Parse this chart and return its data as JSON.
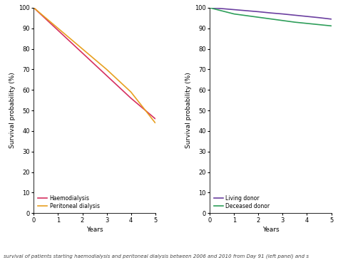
{
  "left_panel": {
    "xlabel": "Years",
    "ylabel": "Survival probability (%)",
    "xlim": [
      0,
      5
    ],
    "ylim": [
      0,
      100
    ],
    "xticks": [
      0,
      1,
      2,
      3,
      4,
      5
    ],
    "yticks": [
      0,
      10,
      20,
      30,
      40,
      50,
      60,
      70,
      80,
      90,
      100
    ],
    "series": [
      {
        "label": "Haemodialysis",
        "color": "#d63060",
        "x": [
          0,
          0.5,
          1,
          1.5,
          2,
          2.5,
          3,
          3.5,
          4,
          4.5,
          5
        ],
        "y": [
          100,
          94.5,
          89,
          83.5,
          78,
          72.5,
          67,
          61.5,
          56,
          51,
          46
        ]
      },
      {
        "label": "Peritoneal dialysis",
        "color": "#e8a020",
        "x": [
          0,
          0.5,
          1,
          1.5,
          2,
          2.5,
          3,
          3.5,
          4,
          4.5,
          5
        ],
        "y": [
          100,
          95,
          90,
          85,
          80,
          75,
          70,
          64.5,
          59,
          51.5,
          44
        ]
      }
    ]
  },
  "right_panel": {
    "xlabel": "Years",
    "ylabel": "Survival probability (%)",
    "xlim": [
      0,
      5
    ],
    "ylim": [
      0,
      100
    ],
    "xticks": [
      0,
      1,
      2,
      3,
      4,
      5
    ],
    "yticks": [
      0,
      10,
      20,
      30,
      40,
      50,
      60,
      70,
      80,
      90,
      100
    ],
    "series": [
      {
        "label": "Living donor",
        "color": "#6b3fa0",
        "x": [
          0,
          0.5,
          1,
          1.5,
          2,
          2.5,
          3,
          3.5,
          4,
          4.5,
          5
        ],
        "y": [
          100,
          99.6,
          99.1,
          98.6,
          98.1,
          97.5,
          97.0,
          96.4,
          95.8,
          95.2,
          94.5
        ]
      },
      {
        "label": "Deceased donor",
        "color": "#2e9e5a",
        "x": [
          0,
          0.5,
          1,
          1.5,
          2,
          2.5,
          3,
          3.5,
          4,
          4.5,
          5
        ],
        "y": [
          100,
          98.5,
          97.0,
          96.2,
          95.4,
          94.6,
          93.8,
          93.0,
          92.4,
          91.8,
          91.2
        ]
      }
    ]
  },
  "caption_fontsize": 5.0,
  "label_fontsize": 6.5,
  "legend_fontsize": 5.5,
  "tick_fontsize": 6,
  "linewidth": 1.2,
  "background_color": "#ffffff",
  "caption": "survival of patients starting haemodialysis and peritoneal dialysis between 2006 and 2010 from Day 91 (left panel) and s"
}
